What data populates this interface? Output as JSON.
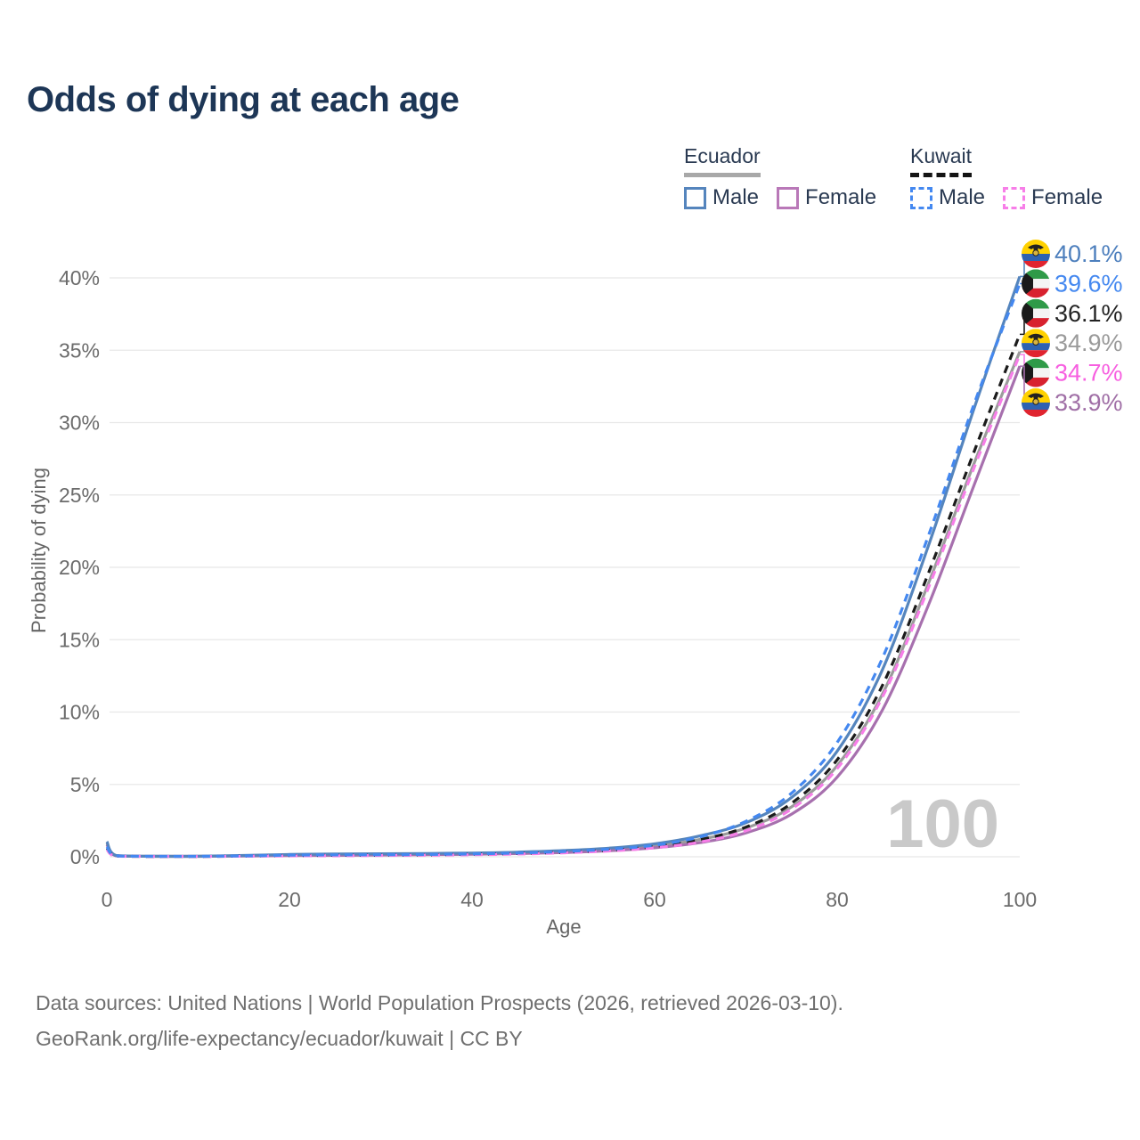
{
  "page": {
    "title": "Odds of dying at each age"
  },
  "legend": {
    "ecuador": {
      "name": "Ecuador",
      "male_label": "Male",
      "female_label": "Female"
    },
    "kuwait": {
      "name": "Kuwait",
      "male_label": "Male",
      "female_label": "Female"
    }
  },
  "footer": {
    "line1": "Data sources: United Nations | World Population Prospects (2026, retrieved 2026-03-10).",
    "line2": "GeoRank.org/life-expectancy/ecuador/kuwait | CC BY"
  },
  "chart_data": {
    "type": "line",
    "title": "Odds of dying at each age",
    "xlabel": "Age",
    "ylabel": "Probability of dying",
    "xlim": [
      0,
      100
    ],
    "ylim_percent": [
      0,
      40
    ],
    "xticks": [
      "0",
      "20",
      "40",
      "60",
      "80",
      "100"
    ],
    "yticks": [
      "0%",
      "5%",
      "10%",
      "15%",
      "20%",
      "25%",
      "30%",
      "35%",
      "40%"
    ],
    "grid": true,
    "watermark": "100",
    "legend_position": "top-right",
    "ages": [
      0,
      1,
      5,
      10,
      15,
      20,
      25,
      30,
      35,
      40,
      45,
      50,
      55,
      60,
      65,
      70,
      75,
      80,
      85,
      90,
      95,
      100
    ],
    "series": [
      {
        "id": "ecuador-all",
        "country": "Ecuador",
        "sex": "Both",
        "color": "#9b9b9b",
        "label_color": "#9a9a9a",
        "dashed": false,
        "flag": "ecuador",
        "end_label": "34.9%",
        "end_value": 34.9,
        "values": [
          0.95,
          0.08,
          0.03,
          0.03,
          0.07,
          0.12,
          0.14,
          0.16,
          0.18,
          0.21,
          0.26,
          0.35,
          0.5,
          0.75,
          1.2,
          1.98,
          3.45,
          6.3,
          11.3,
          18.9,
          27.2,
          34.9
        ]
      },
      {
        "id": "ecuador-female",
        "country": "Ecuador",
        "sex": "Female",
        "color": "#a770ae",
        "label_color": "#a06fa6",
        "dashed": false,
        "flag": "ecuador",
        "end_label": "33.9%",
        "end_value": 33.9,
        "values": [
          0.85,
          0.07,
          0.03,
          0.03,
          0.05,
          0.08,
          0.1,
          0.12,
          0.14,
          0.17,
          0.22,
          0.29,
          0.42,
          0.62,
          0.98,
          1.65,
          2.95,
          5.5,
          10.2,
          17.4,
          25.7,
          33.9
        ]
      },
      {
        "id": "ecuador-male",
        "country": "Ecuador",
        "sex": "Male",
        "color": "#5585bd",
        "label_color": "#4d7fbd",
        "dashed": false,
        "flag": "ecuador",
        "end_label": "40.1%",
        "end_value": 40.1,
        "values": [
          1.05,
          0.09,
          0.04,
          0.04,
          0.09,
          0.16,
          0.19,
          0.21,
          0.23,
          0.26,
          0.32,
          0.43,
          0.6,
          0.9,
          1.45,
          2.35,
          4.1,
          7.3,
          13.0,
          21.5,
          31.0,
          40.1
        ]
      },
      {
        "id": "kuwait-all",
        "country": "Kuwait",
        "sex": "Both",
        "color": "#1b1b1b",
        "label_color": "#222222",
        "dashed": true,
        "flag": "kuwait",
        "end_label": "36.1%",
        "end_value": 36.1,
        "values": [
          0.6,
          0.05,
          0.02,
          0.02,
          0.05,
          0.08,
          0.1,
          0.11,
          0.13,
          0.17,
          0.22,
          0.31,
          0.45,
          0.7,
          1.18,
          2.05,
          3.7,
          6.7,
          11.9,
          19.6,
          28.0,
          36.1
        ]
      },
      {
        "id": "kuwait-female",
        "country": "Kuwait",
        "sex": "Female",
        "color": "#f77ee8",
        "label_color": "#f75fe0",
        "dashed": true,
        "flag": "kuwait",
        "end_label": "34.7%",
        "end_value": 34.7,
        "values": [
          0.5,
          0.04,
          0.02,
          0.02,
          0.04,
          0.06,
          0.07,
          0.09,
          0.11,
          0.14,
          0.19,
          0.27,
          0.4,
          0.62,
          1.02,
          1.8,
          3.3,
          6.1,
          11.1,
          18.6,
          26.9,
          34.7
        ]
      },
      {
        "id": "kuwait-male",
        "country": "Kuwait",
        "sex": "Male",
        "color": "#4488f0",
        "label_color": "#4488f0",
        "dashed": true,
        "flag": "kuwait",
        "end_label": "39.6%",
        "end_value": 39.6,
        "values": [
          0.7,
          0.06,
          0.03,
          0.03,
          0.06,
          0.11,
          0.13,
          0.14,
          0.16,
          0.2,
          0.26,
          0.36,
          0.52,
          0.8,
          1.38,
          2.45,
          4.4,
          7.9,
          13.8,
          22.2,
          31.3,
          39.6
        ]
      }
    ],
    "flags": {
      "ecuador": {
        "yellow": "#ffd100",
        "blue": "#2e62b1",
        "red": "#e0242f",
        "crest_dark": "#222222",
        "crest_gold": "#d9b440"
      },
      "kuwait": {
        "green": "#2f9a48",
        "white": "#f4f4f4",
        "red": "#d8222f",
        "black": "#1a1a1a"
      }
    },
    "style": {
      "gridline_color": "#e8e8e8",
      "tick_color": "#6b6b6b",
      "watermark_color": "#c9c9c9",
      "title_color": "#1d3656"
    }
  }
}
